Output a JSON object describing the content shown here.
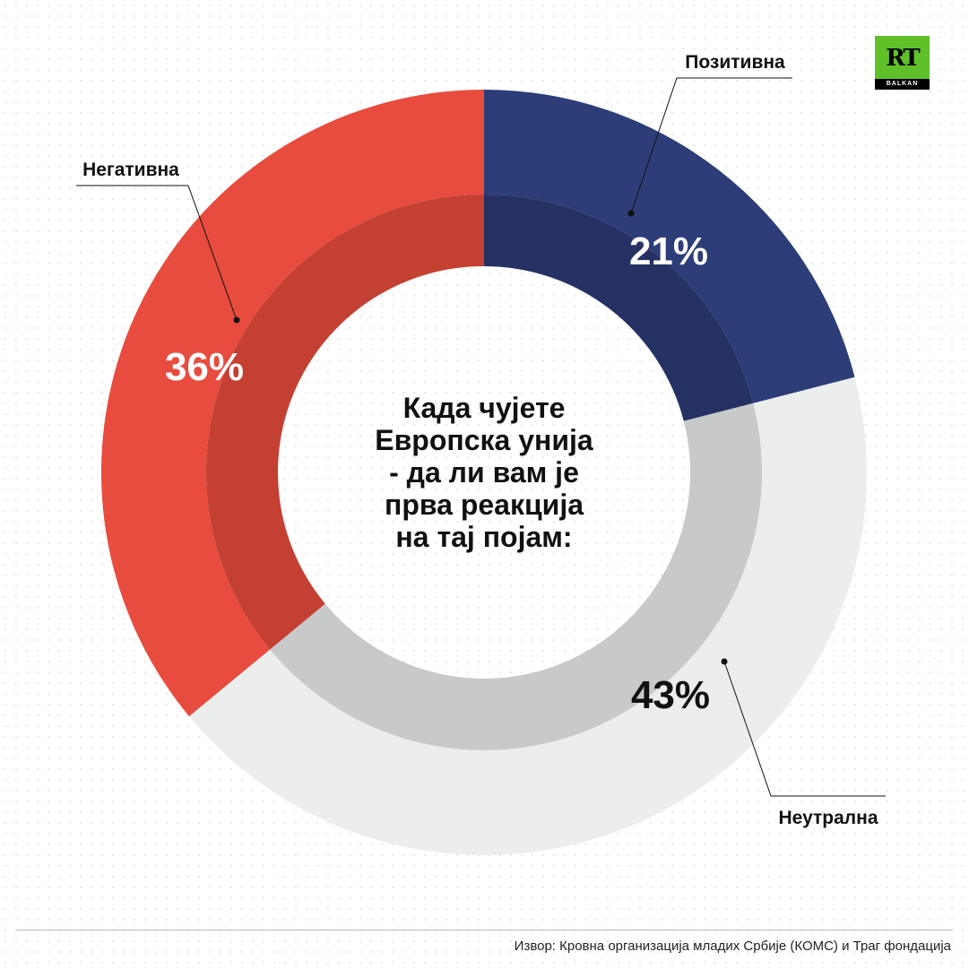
{
  "chart_data": {
    "type": "pie",
    "donut": true,
    "title": "Када чујете Европска унија - да ли вам је прва реакција на тај појам:",
    "title_lines": [
      "Када чујете",
      "Европска унија",
      "- да ли вам је",
      "прва реакција",
      "на тај појам:"
    ],
    "categories": [
      "Позитивна",
      "Неутрална",
      "Негативна"
    ],
    "values": [
      21,
      43,
      36
    ],
    "labels": [
      "21%",
      "43%",
      "36%"
    ],
    "colors": [
      "#2c3d78",
      "#eceeee",
      "#e84c3e"
    ],
    "band_colors": [
      "#253163",
      "#c8c9c9",
      "#c34032"
    ],
    "label_colors": [
      "#ffffff",
      "#111111",
      "#ffffff"
    ]
  },
  "logo": {
    "text": "RT",
    "sub": "BALKAN"
  },
  "source": "Извор: Кровна организација младих Србије (КОМС) и Траг фондација"
}
